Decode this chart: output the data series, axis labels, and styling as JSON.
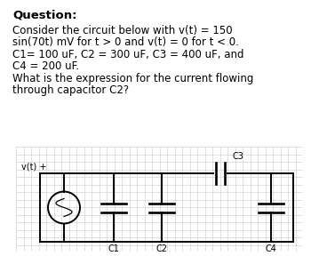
{
  "background_color": "#ffffff",
  "grid_color": "#c8c8c8",
  "circuit_color": "#000000",
  "line_width": 1.4,
  "text_color": "#000000",
  "title": "Question:",
  "title_fontsize": 9.5,
  "body_lines": [
    "Consider the circuit below with v(t) = 150",
    "sin(70t) mV for t > 0 and v(t) = 0 for t < 0.",
    "C1= 100 uF, C2 = 300 uF, C3 = 400 uF, and",
    "C4 = 200 uF.",
    "What is the expression for the current flowing",
    "through capacitor C2?"
  ],
  "body_fontsize": 8.5,
  "label_fontsize": 7.0,
  "vt_label": "v(t) +",
  "c1_label": "C1",
  "c2_label": "C2",
  "c3_label": "C3",
  "c4_label": "C4"
}
